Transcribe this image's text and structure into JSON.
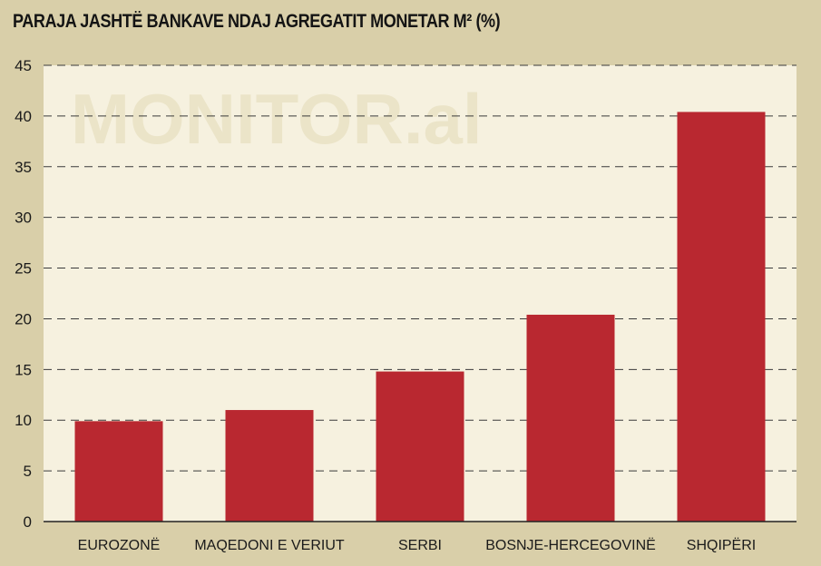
{
  "chart_data": {
    "type": "bar",
    "title": "PARAJA JASHTË BANKAVE NDAJ AGREGATIT MONETAR M² (%)",
    "categories": [
      "EUROZONË",
      "MAQEDONI E VERIUT",
      "SERBI",
      "BOSNJE-HERCEGOVINË",
      "SHQIPËRI"
    ],
    "values": [
      9.9,
      11.0,
      14.8,
      20.4,
      40.4
    ],
    "ylim": [
      0,
      45
    ],
    "yticks": [
      0,
      5,
      10,
      15,
      20,
      25,
      30,
      35,
      40,
      45
    ],
    "grid": true,
    "legend": "none",
    "watermark": "MONITOR.al",
    "colors": {
      "bar": "#b92830",
      "plot_background": "#f6f1df",
      "page_background": "#d9cfa9",
      "grid": "#3a3a3a"
    }
  }
}
